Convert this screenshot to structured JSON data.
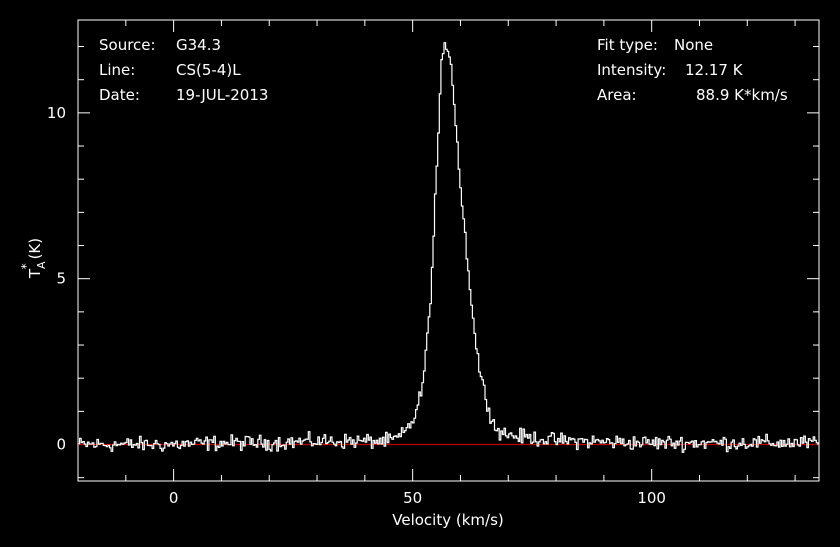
{
  "header": {
    "source_label": "Source:",
    "source_value": "G34.3",
    "line_label": "Line:",
    "line_value": "CS(5-4)L",
    "date_label": "Date:",
    "date_value": "19-JUL-2013",
    "fit_label": "Fit type:",
    "fit_value": "None",
    "intensity_label": "Intensity:",
    "intensity_value": "12.17 K",
    "area_label": "Area:",
    "area_value": "88.9 K*km/s"
  },
  "axes": {
    "x_label": "Velocity (km/s)",
    "y_label_main": "T",
    "y_label_sup": "*",
    "y_label_sub": "A",
    "y_label_unit": "(K)"
  },
  "colors": {
    "background": "#000000",
    "spectrum": "#ffffff",
    "baseline": "#c00000",
    "frame": "#ffffff"
  },
  "chart_data": {
    "type": "line",
    "xlabel": "Velocity (km/s)",
    "ylabel": "TA* (K)",
    "xlim": [
      -20,
      135
    ],
    "ylim": [
      -1.1,
      12.8
    ],
    "x_ticks": [
      0,
      50,
      100
    ],
    "y_ticks": [
      0,
      5,
      10
    ],
    "grid": false,
    "baseline_y": 0,
    "peak": {
      "x": 57,
      "y": 12.17
    },
    "series": [
      {
        "x": [
          -20,
          -10,
          0,
          10,
          20,
          30,
          40,
          45,
          47,
          48,
          49,
          50,
          51,
          52,
          53,
          54,
          55,
          56,
          57,
          58,
          59,
          60,
          61,
          62,
          63,
          64,
          65,
          66,
          67,
          68,
          70,
          72,
          75,
          80,
          90,
          100,
          110,
          120,
          130,
          135
        ],
        "y": [
          0.0,
          0.0,
          0.0,
          0.05,
          0.05,
          0.1,
          0.1,
          0.1,
          0.2,
          0.3,
          0.5,
          0.7,
          1.1,
          1.7,
          3.0,
          5.0,
          8.2,
          11.3,
          12.17,
          11.6,
          9.8,
          7.8,
          6.3,
          4.8,
          3.3,
          2.3,
          1.6,
          1.1,
          0.6,
          0.4,
          0.3,
          0.25,
          0.2,
          0.12,
          0.08,
          0.05,
          0.05,
          0.05,
          0.05,
          0.05
        ]
      }
    ]
  }
}
